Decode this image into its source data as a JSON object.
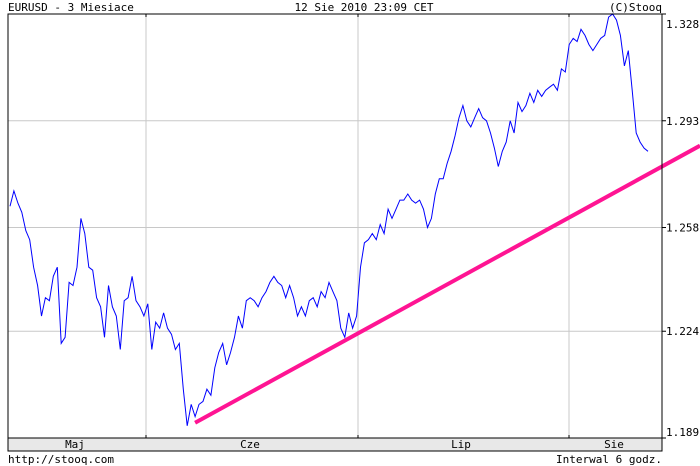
{
  "header": {
    "title": "EURUSD - 3 Miesiace",
    "timestamp": "12 Sie 2010 23:09 CET",
    "copyright": "(C)Stooq"
  },
  "footer": {
    "url": "http://stooq.com",
    "interval": "Interwal 6 godz."
  },
  "chart_data": {
    "type": "line",
    "title": "EURUSD - 3 Miesiace",
    "ylim": [
      1.189,
      1.328
    ],
    "yticks": [
      "1.328",
      "1.293",
      "1.258",
      "1.224",
      "1.189"
    ],
    "ytick_values": [
      1.328,
      1.293,
      1.258,
      1.224,
      1.189
    ],
    "xticks": [
      "Maj",
      "Cze",
      "Lip",
      "Sie"
    ],
    "grid": true,
    "colors": {
      "series": "#0000ff",
      "trendline": "#ff1493",
      "grid": "#c8c8c8",
      "axis_band": "#e8e8e8"
    },
    "series": [
      {
        "values": [
          1.265,
          1.27,
          1.266,
          1.263,
          1.257,
          1.254,
          1.245,
          1.239,
          1.229,
          1.235,
          1.234,
          1.242,
          1.245,
          1.22,
          1.222,
          1.24,
          1.239,
          1.245,
          1.261,
          1.256,
          1.245,
          1.244,
          1.235,
          1.232,
          1.222,
          1.239,
          1.232,
          1.229,
          1.218,
          1.234,
          1.235,
          1.242,
          1.234,
          1.232,
          1.229,
          1.233,
          1.218,
          1.227,
          1.225,
          1.23,
          1.225,
          1.223,
          1.218,
          1.22,
          1.205,
          1.193,
          1.2,
          1.196,
          1.2,
          1.201,
          1.205,
          1.203,
          1.212,
          1.217,
          1.22,
          1.213,
          1.217,
          1.222,
          1.229,
          1.225,
          1.234,
          1.235,
          1.234,
          1.232,
          1.235,
          1.237,
          1.24,
          1.242,
          1.24,
          1.239,
          1.235,
          1.239,
          1.235,
          1.229,
          1.232,
          1.229,
          1.234,
          1.235,
          1.232,
          1.237,
          1.235,
          1.24,
          1.237,
          1.234,
          1.225,
          1.222,
          1.23,
          1.225,
          1.229,
          1.245,
          1.253,
          1.254,
          1.256,
          1.254,
          1.259,
          1.256,
          1.264,
          1.261,
          1.264,
          1.267,
          1.267,
          1.269,
          1.267,
          1.266,
          1.267,
          1.264,
          1.258,
          1.261,
          1.269,
          1.274,
          1.274,
          1.279,
          1.283,
          1.288,
          1.294,
          1.298,
          1.293,
          1.291,
          1.294,
          1.297,
          1.294,
          1.293,
          1.289,
          1.284,
          1.278,
          1.283,
          1.286,
          1.293,
          1.289,
          1.299,
          1.296,
          1.298,
          1.302,
          1.299,
          1.303,
          1.301,
          1.303,
          1.304,
          1.305,
          1.303,
          1.31,
          1.309,
          1.318,
          1.32,
          1.319,
          1.323,
          1.321,
          1.318,
          1.316,
          1.318,
          1.32,
          1.321,
          1.327,
          1.328,
          1.326,
          1.321,
          1.311,
          1.316,
          1.303,
          1.289,
          1.286,
          1.284,
          1.283
        ]
      }
    ],
    "trendline": {
      "start_index": 47,
      "start_price": 1.194,
      "end_price_at_right_edge": 1.278
    }
  }
}
